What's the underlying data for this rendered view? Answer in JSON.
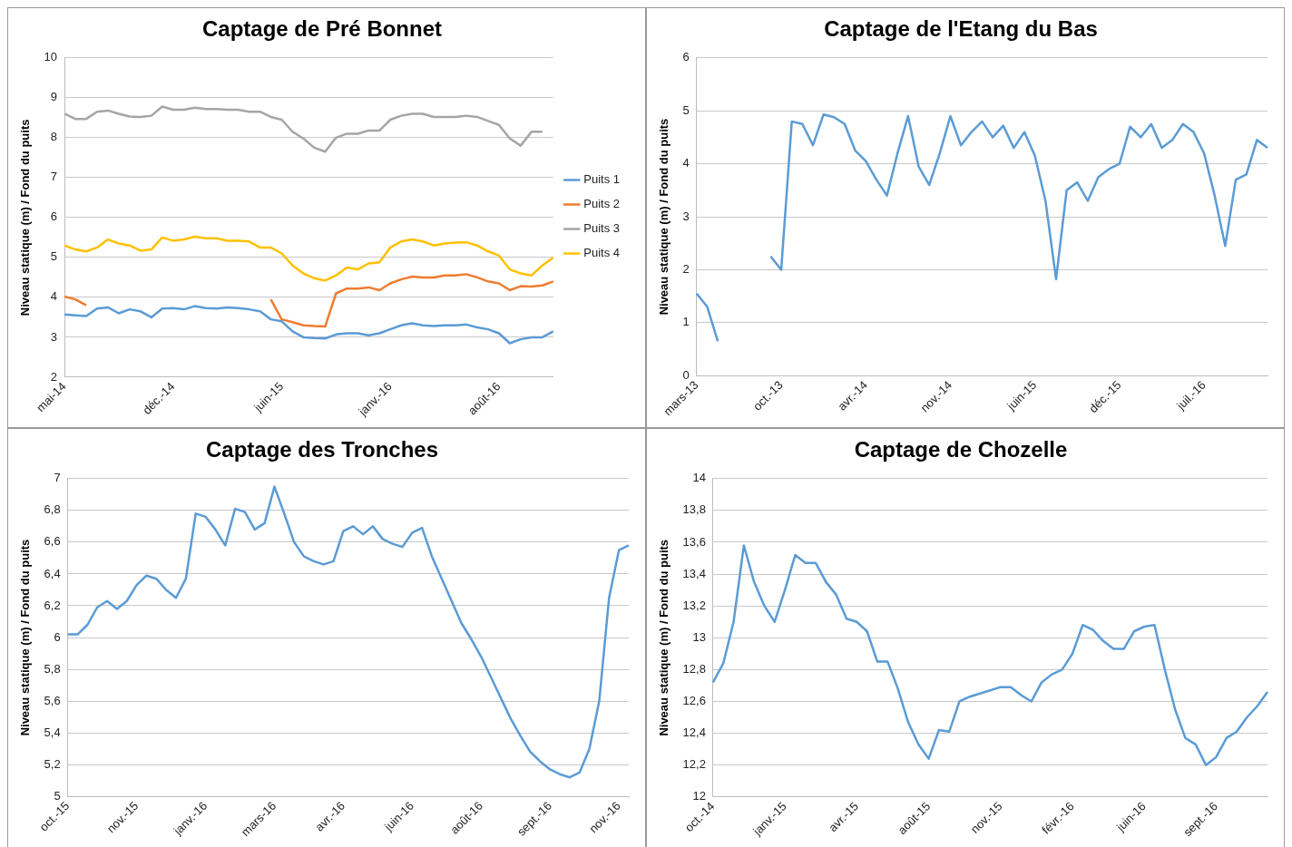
{
  "chart_data": [
    {
      "type": "line",
      "title": "Captage de Pré Bonnet",
      "ylabel": "Niveau statique (m) / Fond du puits",
      "legend": "right",
      "grid": "y",
      "marker": "none",
      "line_style": "solid",
      "categories": [
        "mai-14",
        null,
        null,
        null,
        null,
        null,
        null,
        null,
        null,
        null,
        "déc.-14",
        null,
        null,
        null,
        null,
        null,
        null,
        null,
        null,
        null,
        "juin-15",
        null,
        null,
        null,
        null,
        null,
        null,
        null,
        null,
        null,
        "janv.-16",
        null,
        null,
        null,
        null,
        null,
        null,
        null,
        null,
        null,
        "août-16",
        null,
        null,
        null,
        null,
        null
      ],
      "ylim": [
        2,
        10
      ],
      "yticks": [
        2,
        3,
        4,
        5,
        6,
        7,
        8,
        9,
        10
      ],
      "series": [
        {
          "name": "Puits 1",
          "color": "#5b9bd5",
          "values": [
            3.57,
            3.55,
            3.53,
            3.72,
            3.75,
            3.6,
            3.7,
            3.65,
            3.5,
            3.72,
            3.73,
            3.7,
            3.78,
            3.73,
            3.72,
            3.75,
            3.73,
            3.7,
            3.65,
            3.45,
            3.4,
            3.15,
            3.0,
            2.98,
            2.97,
            3.07,
            3.1,
            3.1,
            3.05,
            3.1,
            3.2,
            3.3,
            3.35,
            3.3,
            3.28,
            3.3,
            3.3,
            3.32,
            3.25,
            3.2,
            3.1,
            2.85,
            2.95,
            3.0,
            3.0,
            3.15
          ]
        },
        {
          "name": "Puits 2",
          "color": "#ed7d31",
          "values": [
            4.02,
            3.95,
            3.8,
            null,
            null,
            null,
            null,
            null,
            null,
            null,
            null,
            null,
            null,
            null,
            null,
            null,
            null,
            null,
            null,
            3.95,
            3.45,
            3.38,
            3.3,
            3.28,
            3.27,
            4.1,
            4.22,
            4.22,
            4.25,
            4.18,
            4.35,
            4.45,
            4.52,
            4.5,
            4.5,
            4.55,
            4.55,
            4.58,
            4.5,
            4.4,
            4.35,
            4.18,
            4.28,
            4.27,
            4.3,
            4.4
          ]
        },
        {
          "name": "Puits 3",
          "color": "#a5a5a5",
          "values": [
            8.6,
            8.47,
            8.47,
            8.65,
            8.68,
            8.6,
            8.53,
            8.52,
            8.55,
            8.78,
            8.7,
            8.7,
            8.75,
            8.72,
            8.72,
            8.7,
            8.7,
            8.65,
            8.65,
            8.52,
            8.45,
            8.15,
            7.98,
            7.75,
            7.65,
            8.0,
            8.1,
            8.1,
            8.18,
            8.18,
            8.45,
            8.55,
            8.6,
            8.6,
            8.52,
            8.52,
            8.52,
            8.55,
            8.52,
            8.42,
            8.32,
            7.98,
            7.8,
            8.15,
            8.15,
            null
          ]
        },
        {
          "name": "Puits 4",
          "color": "#ffc000",
          "values": [
            5.3,
            5.2,
            5.15,
            5.25,
            5.45,
            5.35,
            5.3,
            5.17,
            5.2,
            5.5,
            5.42,
            5.45,
            5.52,
            5.48,
            5.48,
            5.42,
            5.42,
            5.4,
            5.25,
            5.25,
            5.1,
            4.8,
            4.6,
            4.48,
            4.42,
            4.55,
            4.75,
            4.7,
            4.85,
            4.88,
            5.25,
            5.4,
            5.45,
            5.4,
            5.3,
            5.35,
            5.37,
            5.38,
            5.3,
            5.15,
            5.05,
            4.7,
            4.6,
            4.55,
            4.8,
            5.0
          ]
        }
      ]
    },
    {
      "type": "line",
      "title": "Captage de l'Etang du Bas",
      "ylabel": "Niveau statique (m) / Fond du puits",
      "grid": "y",
      "marker": "none",
      "line_style": "solid",
      "categories": [
        "mars-13",
        null,
        null,
        null,
        null,
        null,
        null,
        null,
        "oct.-13",
        null,
        null,
        null,
        null,
        null,
        null,
        null,
        "avr.-14",
        null,
        null,
        null,
        null,
        null,
        null,
        null,
        "nov.-14",
        null,
        null,
        null,
        null,
        null,
        null,
        null,
        "juin-15",
        null,
        null,
        null,
        null,
        null,
        null,
        null,
        "déc.-15",
        null,
        null,
        null,
        null,
        null,
        null,
        null,
        "juil.-16",
        null,
        null,
        null,
        null,
        null,
        null
      ],
      "ylim": [
        0,
        6
      ],
      "yticks": [
        0,
        1,
        2,
        3,
        4,
        5,
        6
      ],
      "series": [
        {
          "color": "#5b9bd5",
          "values": [
            1.55,
            1.3,
            0.65,
            null,
            null,
            null,
            null,
            2.25,
            2.0,
            4.8,
            4.75,
            4.35,
            4.93,
            4.88,
            4.75,
            4.25,
            4.05,
            3.7,
            3.4,
            4.2,
            4.9,
            3.95,
            3.6,
            4.2,
            4.9,
            4.35,
            4.6,
            4.8,
            4.5,
            4.72,
            4.3,
            4.6,
            4.15,
            3.3,
            1.82,
            3.5,
            3.65,
            3.3,
            3.75,
            3.9,
            4.0,
            4.7,
            4.5,
            4.75,
            4.3,
            4.45,
            4.75,
            4.6,
            4.2,
            3.4,
            2.45,
            3.7,
            3.8,
            4.45,
            4.3
          ]
        }
      ]
    },
    {
      "type": "line",
      "title": "Captage des Tronches",
      "ylabel": "Niveau statique (m) / Fond du puits",
      "grid": "y",
      "marker": "none",
      "line_style": "solid",
      "categories": [
        "oct.-15",
        null,
        null,
        null,
        null,
        null,
        null,
        "nov.-15",
        null,
        null,
        null,
        null,
        null,
        null,
        "janv.-16",
        null,
        null,
        null,
        null,
        null,
        null,
        "mars-16",
        null,
        null,
        null,
        null,
        null,
        null,
        "avr.-16",
        null,
        null,
        null,
        null,
        null,
        null,
        "juin-16",
        null,
        null,
        null,
        null,
        null,
        null,
        "août-16",
        null,
        null,
        null,
        null,
        null,
        null,
        "sept.-16",
        null,
        null,
        null,
        null,
        null,
        null,
        "nov.-16",
        null
      ],
      "ylim": [
        5,
        7
      ],
      "yticks": [
        5,
        {
          "value": 5.2,
          "label": "5,2"
        },
        {
          "value": 5.4,
          "label": "5,4"
        },
        {
          "value": 5.6,
          "label": "5,6"
        },
        {
          "value": 5.8,
          "label": "5,8"
        },
        6,
        {
          "value": 6.2,
          "label": "6,2"
        },
        {
          "value": 6.4,
          "label": "6,4"
        },
        {
          "value": 6.6,
          "label": "6,6"
        },
        {
          "value": 6.8,
          "label": "6,8"
        },
        7
      ],
      "series": [
        {
          "color": "#5b9bd5",
          "values": [
            6.02,
            6.02,
            6.08,
            6.19,
            6.23,
            6.18,
            6.23,
            6.33,
            6.39,
            6.37,
            6.3,
            6.25,
            6.37,
            6.78,
            6.76,
            6.68,
            6.58,
            6.81,
            6.79,
            6.68,
            6.72,
            6.95,
            6.78,
            6.6,
            6.51,
            6.48,
            6.46,
            6.48,
            6.67,
            6.7,
            6.65,
            6.7,
            6.62,
            6.59,
            6.57,
            6.66,
            6.69,
            6.51,
            6.37,
            6.23,
            6.09,
            5.99,
            5.88,
            5.75,
            5.62,
            5.49,
            5.38,
            5.28,
            5.22,
            5.17,
            5.14,
            5.12,
            5.15,
            5.3,
            5.6,
            6.25,
            6.55,
            6.58
          ]
        }
      ]
    },
    {
      "type": "line",
      "title": "Captage de Chozelle",
      "ylabel": "Niveau statique (m) / Fond du puits",
      "grid": "y",
      "marker": "none",
      "line_style": "solid",
      "categories": [
        "oct.-14",
        null,
        null,
        null,
        null,
        null,
        null,
        "janv.-15",
        null,
        null,
        null,
        null,
        null,
        null,
        "avr.-15",
        null,
        null,
        null,
        null,
        null,
        null,
        "août-15",
        null,
        null,
        null,
        null,
        null,
        null,
        "nov.-15",
        null,
        null,
        null,
        null,
        null,
        null,
        "févr.-16",
        null,
        null,
        null,
        null,
        null,
        null,
        "juin-16",
        null,
        null,
        null,
        null,
        null,
        null,
        "sept.-16",
        null,
        null,
        null,
        null,
        null
      ],
      "ylim": [
        12,
        14
      ],
      "yticks": [
        12,
        {
          "value": 12.2,
          "label": "12,2"
        },
        {
          "value": 12.4,
          "label": "12,4"
        },
        {
          "value": 12.6,
          "label": "12,6"
        },
        {
          "value": 12.8,
          "label": "12,8"
        },
        13,
        {
          "value": 13.2,
          "label": "13,2"
        },
        {
          "value": 13.4,
          "label": "13,4"
        },
        {
          "value": 13.6,
          "label": "13,6"
        },
        {
          "value": 13.8,
          "label": "13,8"
        },
        14
      ],
      "series": [
        {
          "color": "#5b9bd5",
          "values": [
            12.72,
            12.84,
            13.1,
            13.58,
            13.35,
            13.2,
            13.1,
            13.3,
            13.52,
            13.47,
            13.47,
            13.35,
            13.27,
            13.12,
            13.1,
            13.04,
            12.85,
            12.85,
            12.68,
            12.47,
            12.33,
            12.24,
            12.42,
            12.41,
            12.6,
            12.63,
            12.65,
            12.67,
            12.69,
            12.69,
            12.64,
            12.6,
            12.72,
            12.77,
            12.8,
            12.9,
            13.08,
            13.05,
            12.98,
            12.93,
            12.93,
            13.04,
            13.07,
            13.08,
            12.8,
            12.55,
            12.37,
            12.33,
            12.2,
            12.25,
            12.37,
            12.41,
            12.5,
            12.57,
            12.66
          ]
        }
      ]
    }
  ]
}
